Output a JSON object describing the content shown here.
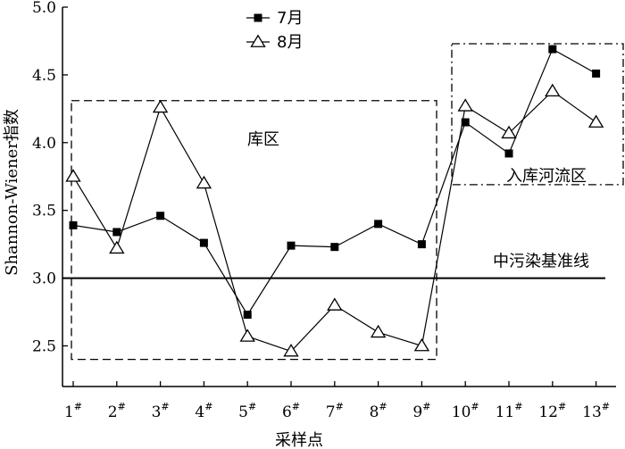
{
  "chart_data": {
    "type": "line",
    "xlabel": "采样点",
    "ylabel": "Shannon-Wiener指数",
    "x_tick_suffix": "#",
    "categories": [
      "1",
      "2",
      "3",
      "4",
      "5",
      "6",
      "7",
      "8",
      "9",
      "10",
      "11",
      "12",
      "13"
    ],
    "ylim": [
      2.2,
      5.0
    ],
    "yticks": [
      "2.5",
      "3.0",
      "3.5",
      "4.0",
      "4.5",
      "5.0"
    ],
    "grid": false,
    "legend_position": "top-center",
    "series": [
      {
        "name": "7月",
        "marker": "filled-square",
        "color": "#000000",
        "values": [
          3.39,
          3.34,
          3.46,
          3.26,
          2.73,
          3.24,
          3.23,
          3.4,
          3.25,
          4.15,
          3.92,
          4.69,
          4.51
        ]
      },
      {
        "name": "8月",
        "marker": "open-triangle",
        "color": "#000000",
        "values": [
          3.75,
          3.22,
          4.26,
          3.7,
          2.57,
          2.46,
          2.8,
          2.6,
          2.5,
          4.27,
          4.07,
          4.38,
          4.15
        ]
      }
    ],
    "reference_line": {
      "label": "中污染基准线",
      "y": 3.0
    },
    "regions": [
      {
        "label": "库区",
        "x_from": 1,
        "x_to": 9,
        "y_from": 2.4,
        "y_to": 4.31,
        "style": "dashed"
      },
      {
        "label": "入库河流区",
        "x_from": 10,
        "x_to": 13,
        "y_from": 3.69,
        "y_to": 4.73,
        "style": "dash-dot"
      }
    ]
  }
}
